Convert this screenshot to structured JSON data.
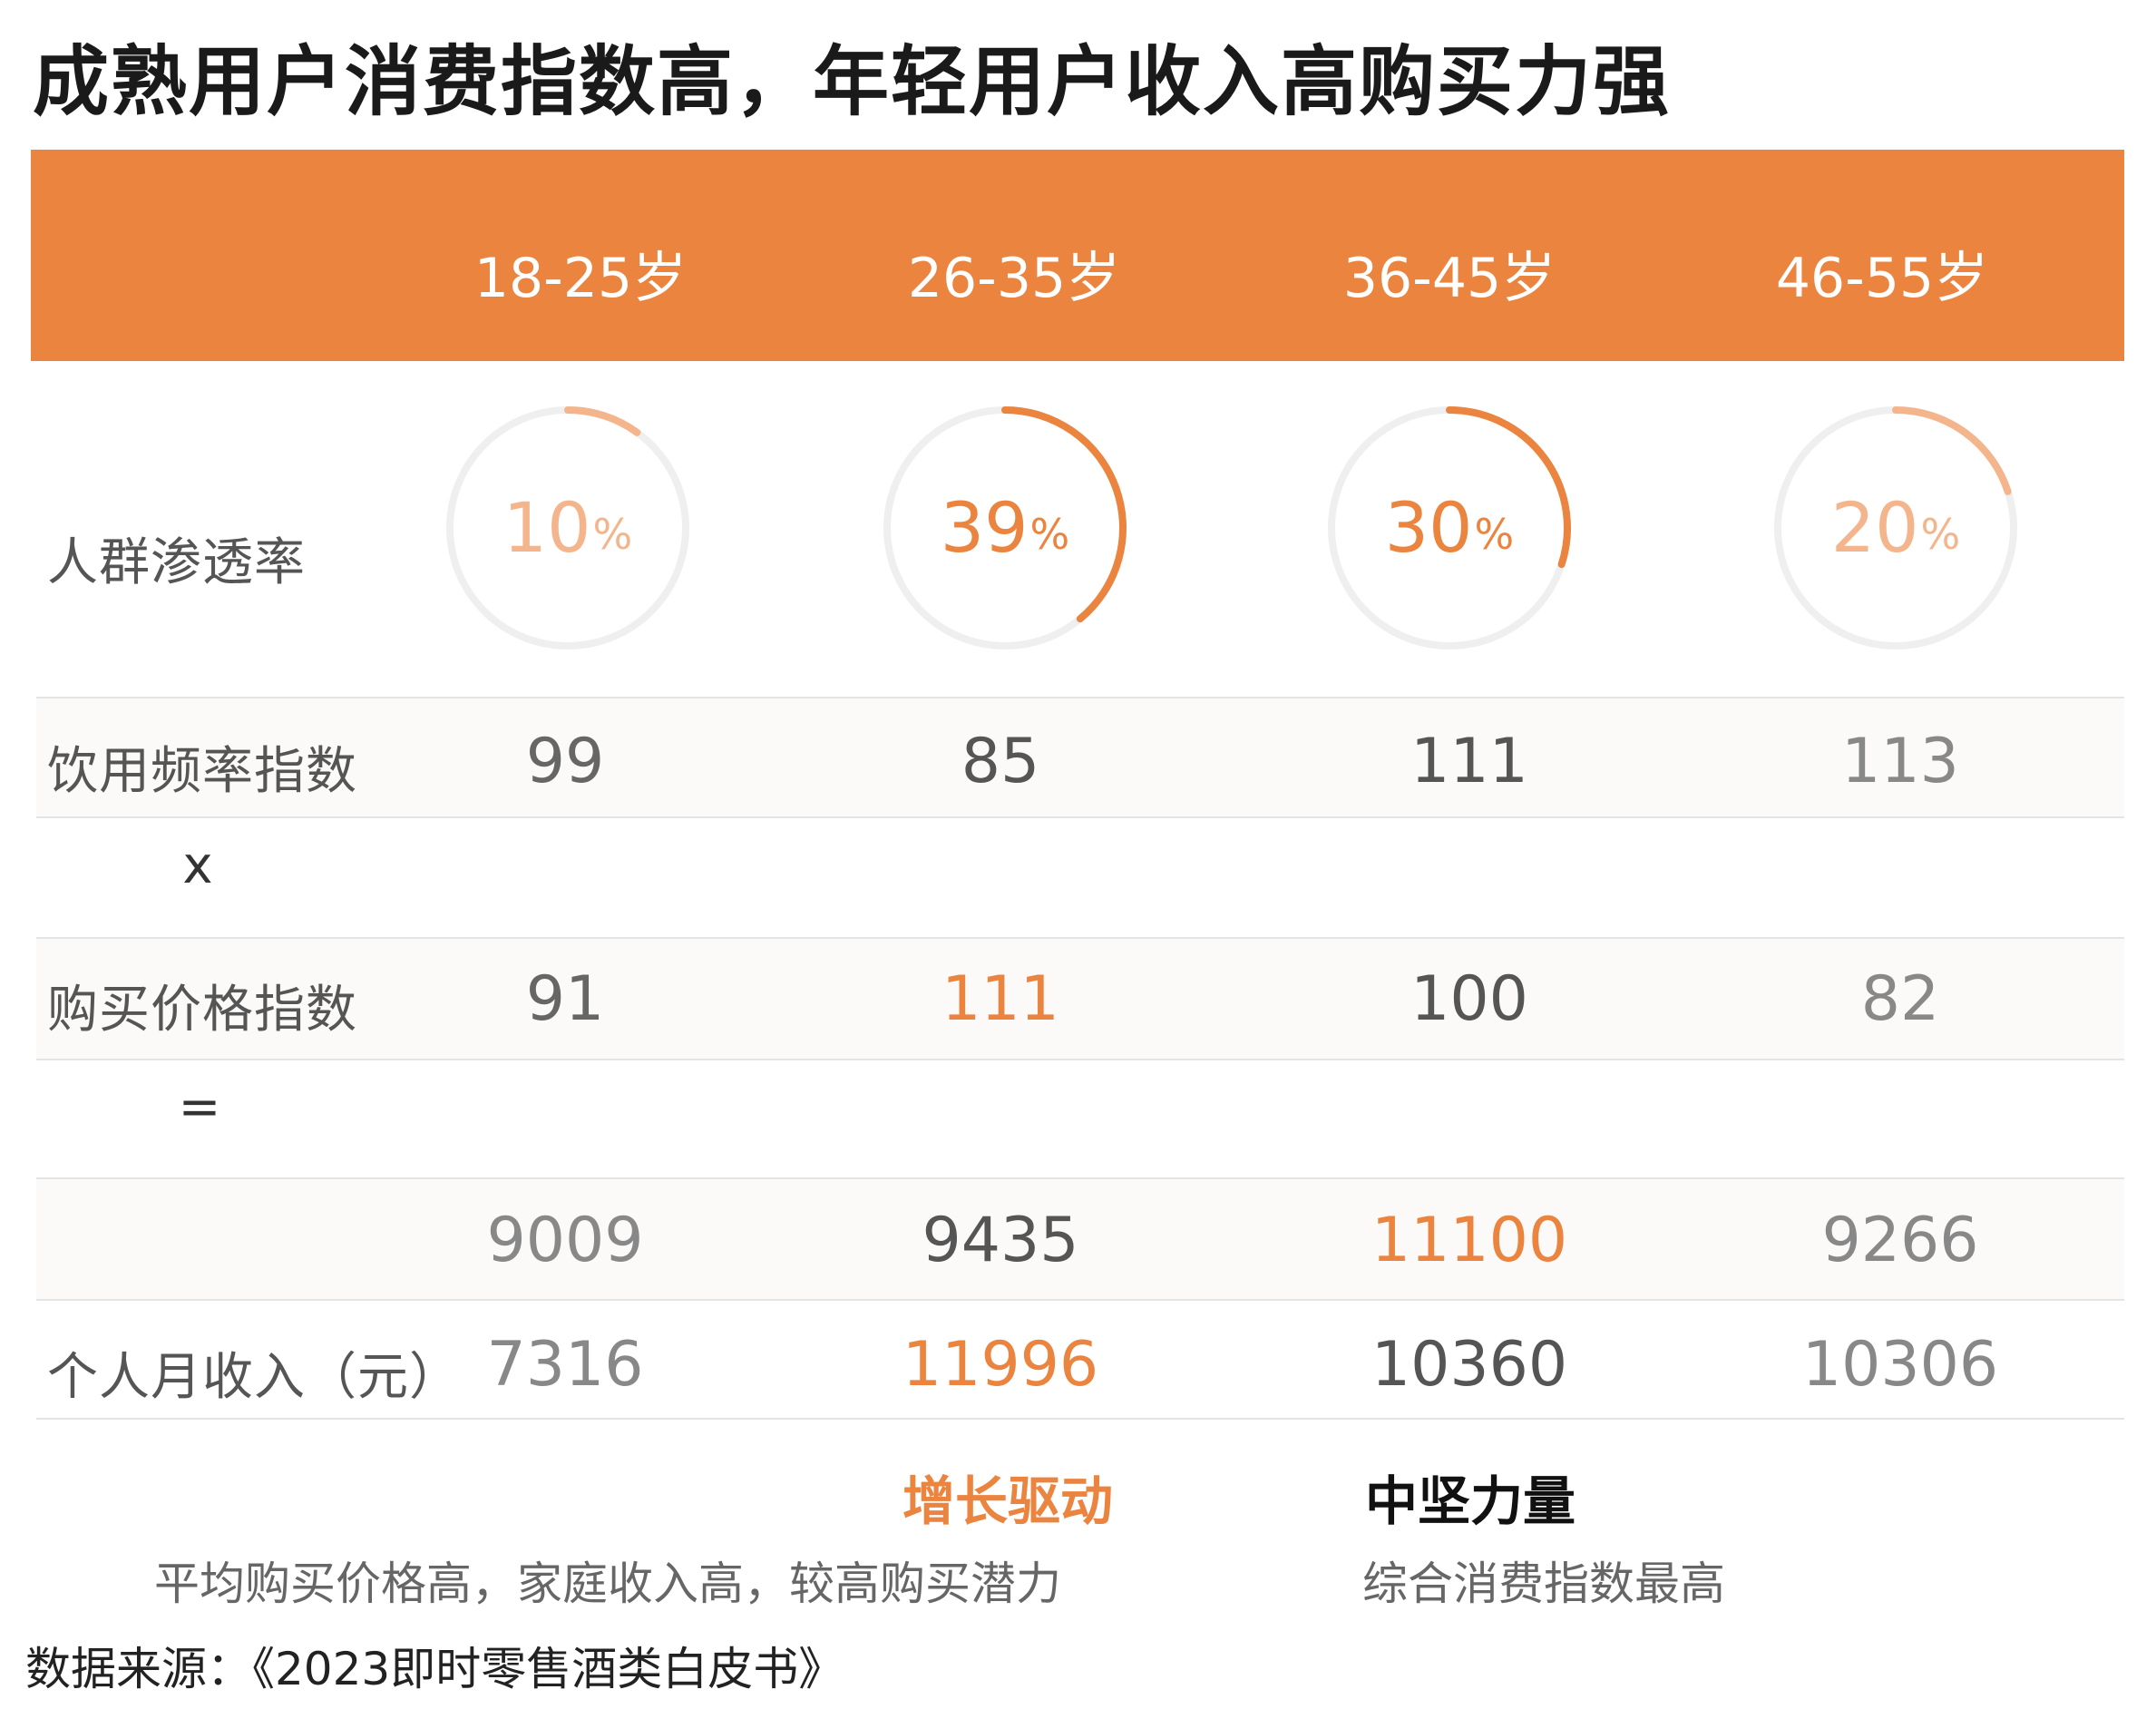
{
  "title": "成熟用户消费指数高，年轻用户收入高购买力强",
  "colors": {
    "accent": "#ea843f",
    "accent_light": "#f4b58c",
    "ring_track": "#efefef",
    "band": "#fbfaf8"
  },
  "header": {
    "columns": [
      "18-25岁",
      "26-35岁",
      "36-45岁",
      "46-55岁"
    ]
  },
  "rows": {
    "penetration": {
      "label": "人群渗透率"
    },
    "frequency": {
      "label": "饮用频率指数",
      "values": [
        "99",
        "85",
        "111",
        "113"
      ]
    },
    "times_op": "x",
    "price": {
      "label": "购买价格指数",
      "values": [
        "91",
        "111",
        "100",
        "82"
      ]
    },
    "equals_op": "=",
    "composite": {
      "label": "",
      "values": [
        "9009",
        "9435",
        "11100",
        "9266"
      ]
    },
    "income": {
      "label": "个人月收入（元）",
      "values": [
        "7316",
        "11996",
        "10360",
        "10306"
      ]
    }
  },
  "ring_labels": [
    {
      "num": "10",
      "pct": "%"
    },
    {
      "num": "39",
      "pct": "%"
    },
    {
      "num": "30",
      "pct": "%"
    },
    {
      "num": "20",
      "pct": "%"
    }
  ],
  "tags": {
    "growth": {
      "title": "增长驱动",
      "desc": "平均购买价格高，家庭收入高，较高购买潜力"
    },
    "core": {
      "title": "中坚力量",
      "desc": "综合消费指数最高"
    }
  },
  "source": "数据来源：《2023即时零售酒类白皮书》",
  "chart_data": {
    "type": "table",
    "title": "成熟用户消费指数高，年轻用户收入高购买力强",
    "categories": [
      "18-25岁",
      "26-35岁",
      "36-45岁",
      "46-55岁"
    ],
    "series": [
      {
        "name": "人群渗透率",
        "values": [
          10,
          39,
          30,
          20
        ],
        "unit": "%"
      },
      {
        "name": "饮用频率指数",
        "values": [
          99,
          85,
          111,
          113
        ]
      },
      {
        "name": "购买价格指数",
        "values": [
          91,
          111,
          100,
          82
        ]
      },
      {
        "name": "",
        "values": [
          9009,
          9435,
          11100,
          9266
        ]
      },
      {
        "name": "个人月收入（元）",
        "values": [
          7316,
          11996,
          10360,
          10306
        ]
      }
    ]
  }
}
